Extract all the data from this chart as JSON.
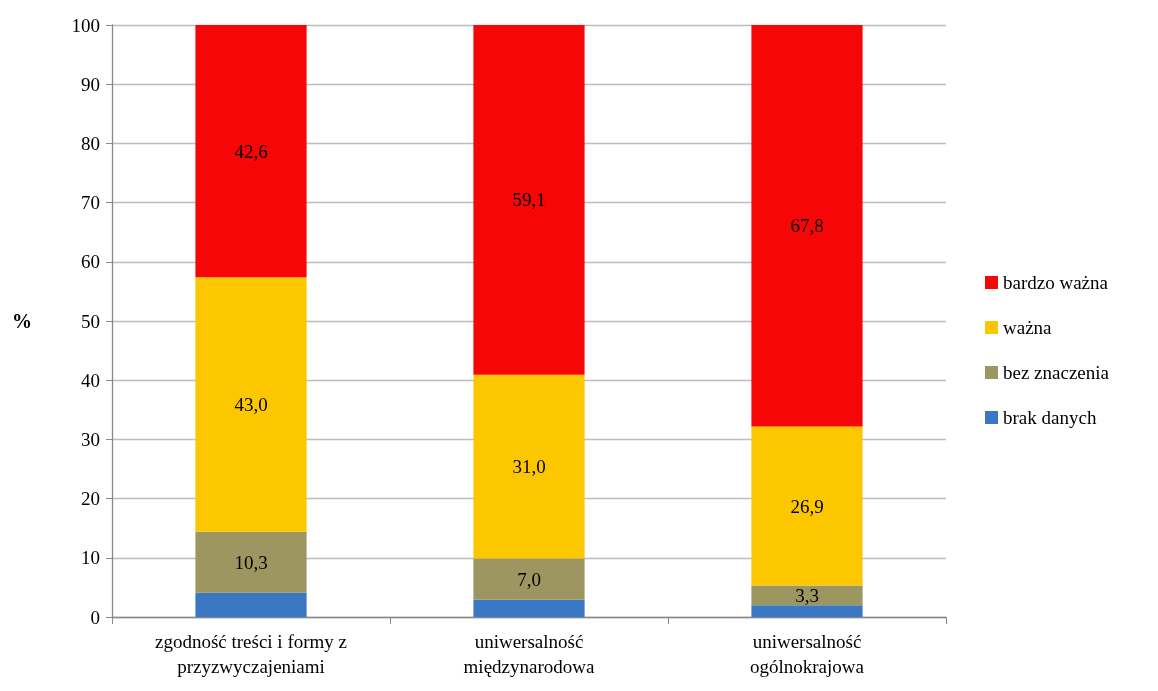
{
  "chart_data": {
    "type": "bar",
    "stacked": true,
    "ylabel": "%",
    "categories": [
      "zgodność treści i formy z przyzwyczajeniami",
      "uniwersalność międzynarodowa",
      "uniwersalność ogólnokrajowa"
    ],
    "series": [
      {
        "name": "brak danych",
        "color": "#3a78c4",
        "values": [
          4.1,
          2.9,
          2.0
        ]
      },
      {
        "name": "bez znaczenia",
        "color": "#9e9660",
        "values": [
          10.3,
          7.0,
          3.3
        ],
        "value_labels": [
          "10,3",
          "7,0",
          "3,3"
        ]
      },
      {
        "name": "ważna",
        "color": "#fdc700",
        "values": [
          43.0,
          31.0,
          26.9
        ],
        "value_labels": [
          "43,0",
          "31,0",
          "26,9"
        ]
      },
      {
        "name": "bardzo ważna",
        "color": "#f60606",
        "values": [
          42.6,
          59.1,
          67.8
        ],
        "value_labels": [
          "42,6",
          "59,1",
          "67,8"
        ]
      }
    ],
    "ylim": [
      0,
      100
    ],
    "yticks": [
      0,
      10,
      20,
      30,
      40,
      50,
      60,
      70,
      80,
      90,
      100
    ],
    "grid": "y",
    "legend": "right"
  }
}
